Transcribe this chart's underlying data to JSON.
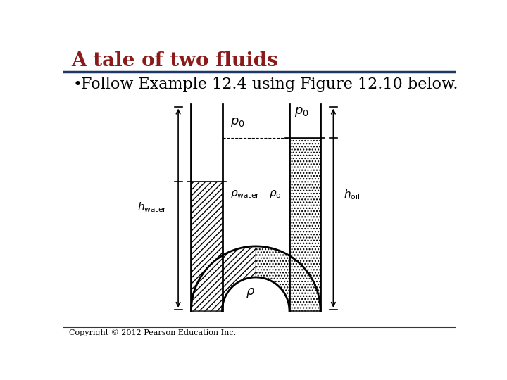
{
  "title": "A tale of two fluids",
  "title_color": "#8B1A1A",
  "title_fontsize": 20,
  "bullet_text": "Follow Example 12.4 using Figure 12.10 below.",
  "bullet_fontsize": 16,
  "copyright": "Copyright © 2012 Pearson Education Inc.",
  "copyright_fontsize": 8,
  "separator_color": "#1F3864",
  "background_color": "#FFFFFF",
  "hatch_water": "////",
  "hatch_oil": "....",
  "tube_color": "#000000",
  "tube_linewidth": 2.0,
  "fluid_fill_water": "#E8E8E8",
  "fluid_fill_oil": "#F0F0F0"
}
